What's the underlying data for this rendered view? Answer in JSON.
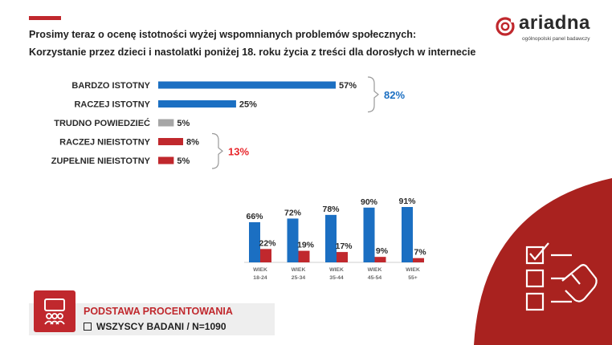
{
  "header": {
    "question": "Prosimy teraz o ocenę istotności wyżej wspomnianych problemów społecznych:",
    "topic": "Korzystanie przez dzieci i nastolatki poniżej 18. roku życia z treści dla dorosłych w internecie"
  },
  "logo": {
    "brand": "ariadna",
    "tagline": "ogólnopolski panel badawczy"
  },
  "colors": {
    "blue": "#1b6fc2",
    "red": "#c0282d",
    "gray": "#a6a6a6"
  },
  "chart_data": [
    {
      "type": "bar",
      "orientation": "horizontal",
      "categories": [
        "BARDZO ISTOTNY",
        "RACZEJ ISTOTNY",
        "TRUDNO POWIEDZIEĆ",
        "RACZEJ NIEISTOTNY",
        "ZUPEŁNIE NIEISTOTNY"
      ],
      "values": [
        57,
        25,
        5,
        8,
        5
      ],
      "value_labels": [
        "57%",
        "25%",
        "5%",
        "8%",
        "5%"
      ],
      "bar_colors": [
        "#1b6fc2",
        "#1b6fc2",
        "#a6a6a6",
        "#c0282d",
        "#c0282d"
      ],
      "xlim": [
        0,
        100
      ],
      "groups": [
        {
          "label": "82%",
          "color": "#1b6fc2",
          "members": [
            0,
            1
          ]
        },
        {
          "label": "13%",
          "color": "#e8262b",
          "members": [
            3,
            4
          ]
        }
      ]
    },
    {
      "type": "bar",
      "orientation": "vertical",
      "categories": [
        [
          "WIEK",
          "18-24"
        ],
        [
          "WIEK",
          "25-34"
        ],
        [
          "WIEK",
          "35-44"
        ],
        [
          "WIEK",
          "45-54"
        ],
        [
          "WIEK",
          "55+"
        ]
      ],
      "series": [
        {
          "values": [
            66,
            72,
            78,
            90,
            91
          ],
          "value_labels": [
            "66%",
            "72%",
            "78%",
            "90%",
            "91%"
          ],
          "color": "#1b6fc2"
        },
        {
          "values": [
            22,
            19,
            17,
            9,
            7
          ],
          "value_labels": [
            "22%",
            "19%",
            "17%",
            "9%",
            "7%"
          ],
          "color": "#c0282d"
        }
      ],
      "ylim": [
        0,
        100
      ]
    }
  ],
  "footer": {
    "title": "PODSTAWA PROCENTOWANIA",
    "base": "WSZYSCY BADANI / N=1090",
    "icon": "people-presentation-icon"
  },
  "decoration": {
    "icon": "checklist-hand-icon"
  }
}
